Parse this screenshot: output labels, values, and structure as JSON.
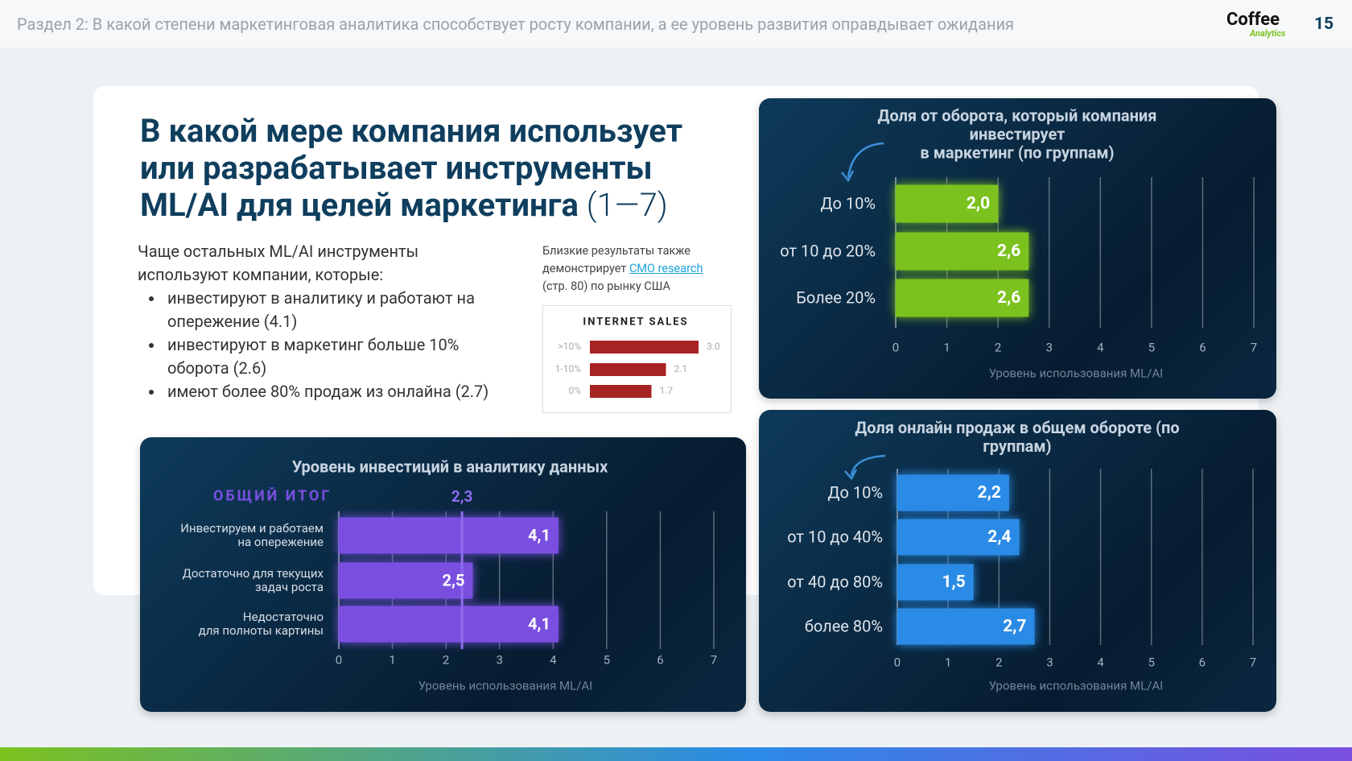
{
  "header": {
    "section": "Раздел 2: В какой степени маркетинговая аналитика способствует росту компании, а ее уровень развития оправдывает ожидания",
    "logo": "Coffee",
    "logo_sub": "Analytics",
    "page": "15"
  },
  "title_lines": [
    "В какой мере компания использует",
    "или разрабатывает инструменты",
    "ML/AI для целей маркетинга"
  ],
  "title_suffix": "(1—7)",
  "intro": "Чаще остальных ML/AI инструменты\nиспользуют компании, которые:",
  "bullets": [
    "инвестируют в аналитику и работают на\nопережение (4.1)",
    "инвестируют в маркетинг больше 10%\nоборота (2.6)",
    "имеют более 80% продаж из онлайна (2.7)"
  ],
  "note": {
    "before": "Близкие результаты также\nдемонстрирует",
    "link": "CMO research",
    "after": "(стр. 80) по рынку США"
  },
  "chart_data": [
    {
      "type": "bar",
      "title": "Уровень инвестиций в аналитику данных",
      "categories": [
        "Инвестируем и работаем\nна опережение",
        "Достаточно для текущих\nзадач роста",
        "Недостаточно\nдля полноты картины"
      ],
      "values": [
        4.1,
        2.5,
        4.1
      ],
      "value_labels": [
        "4,1",
        "2,5",
        "4,1"
      ],
      "color": "#7a4fe0",
      "xlim": [
        0,
        7
      ],
      "xticks": [
        0,
        1,
        2,
        3,
        4,
        5,
        6,
        7
      ],
      "xlabel": "Уровень использования ML/AI",
      "grid": true,
      "reference": {
        "label": "ОБЩИЙ ИТОГ",
        "value": 2.3,
        "value_label": "2,3"
      }
    },
    {
      "type": "bar",
      "title": "Доля от оборота, который компания инвестирует\nв маркетинг (по группам)",
      "categories": [
        "До 10%",
        "от 10 до 20%",
        "Более 20%"
      ],
      "values": [
        2.0,
        2.6,
        2.6
      ],
      "value_labels": [
        "2,0",
        "2,6",
        "2,6"
      ],
      "color": "#7cc21f",
      "xlim": [
        0,
        7
      ],
      "xticks": [
        0,
        1,
        2,
        3,
        4,
        5,
        6,
        7
      ],
      "xlabel": "Уровень использования ML/AI",
      "grid": true
    },
    {
      "type": "bar",
      "title": "Доля онлайн продаж в общем обороте (по группам)",
      "categories": [
        "До 10%",
        "от 10 до 40%",
        "от 40 до 80%",
        "более  80%"
      ],
      "values": [
        2.2,
        2.4,
        1.5,
        2.7
      ],
      "value_labels": [
        "2,2",
        "2,4",
        "1,5",
        "2,7"
      ],
      "color": "#2a8be6",
      "xlim": [
        0,
        7
      ],
      "xticks": [
        0,
        1,
        2,
        3,
        4,
        5,
        6,
        7
      ],
      "xlabel": "Уровень использования ML/AI",
      "grid": true
    },
    {
      "type": "bar",
      "title": "INTERNET SALES",
      "categories": [
        ">10%",
        "1-10%",
        "0%"
      ],
      "values": [
        3.0,
        2.1,
        1.7
      ],
      "value_labels": [
        "3.0",
        "2.1",
        "1.7"
      ],
      "color": "#a82323"
    }
  ]
}
